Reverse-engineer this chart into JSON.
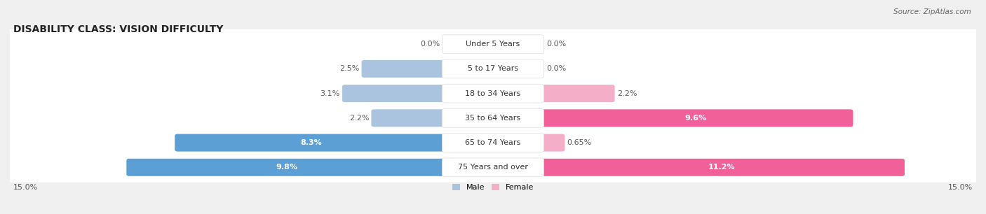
{
  "title": "DISABILITY CLASS: VISION DIFFICULTY",
  "source": "Source: ZipAtlas.com",
  "categories": [
    "Under 5 Years",
    "5 to 17 Years",
    "18 to 34 Years",
    "35 to 64 Years",
    "65 to 74 Years",
    "75 Years and over"
  ],
  "male_values": [
    0.0,
    2.5,
    3.1,
    2.2,
    8.3,
    9.8
  ],
  "female_values": [
    0.0,
    0.0,
    2.2,
    9.6,
    0.65,
    11.2
  ],
  "male_labels": [
    "0.0%",
    "2.5%",
    "3.1%",
    "2.2%",
    "8.3%",
    "9.8%"
  ],
  "female_labels": [
    "0.0%",
    "0.0%",
    "2.2%",
    "9.6%",
    "0.65%",
    "11.2%"
  ],
  "male_color_light": "#aac4e0",
  "male_color_dark": "#5b9fd4",
  "female_color_light": "#f5aec8",
  "female_color_dark": "#f2609a",
  "x_max": 15.0,
  "background_color": "#f0f0f0",
  "row_bg_color": "#ffffff",
  "title_fontsize": 10,
  "label_fontsize": 8,
  "cat_fontsize": 8,
  "source_fontsize": 7.5,
  "male_label_threshold": 5.0,
  "female_label_threshold": 5.0
}
